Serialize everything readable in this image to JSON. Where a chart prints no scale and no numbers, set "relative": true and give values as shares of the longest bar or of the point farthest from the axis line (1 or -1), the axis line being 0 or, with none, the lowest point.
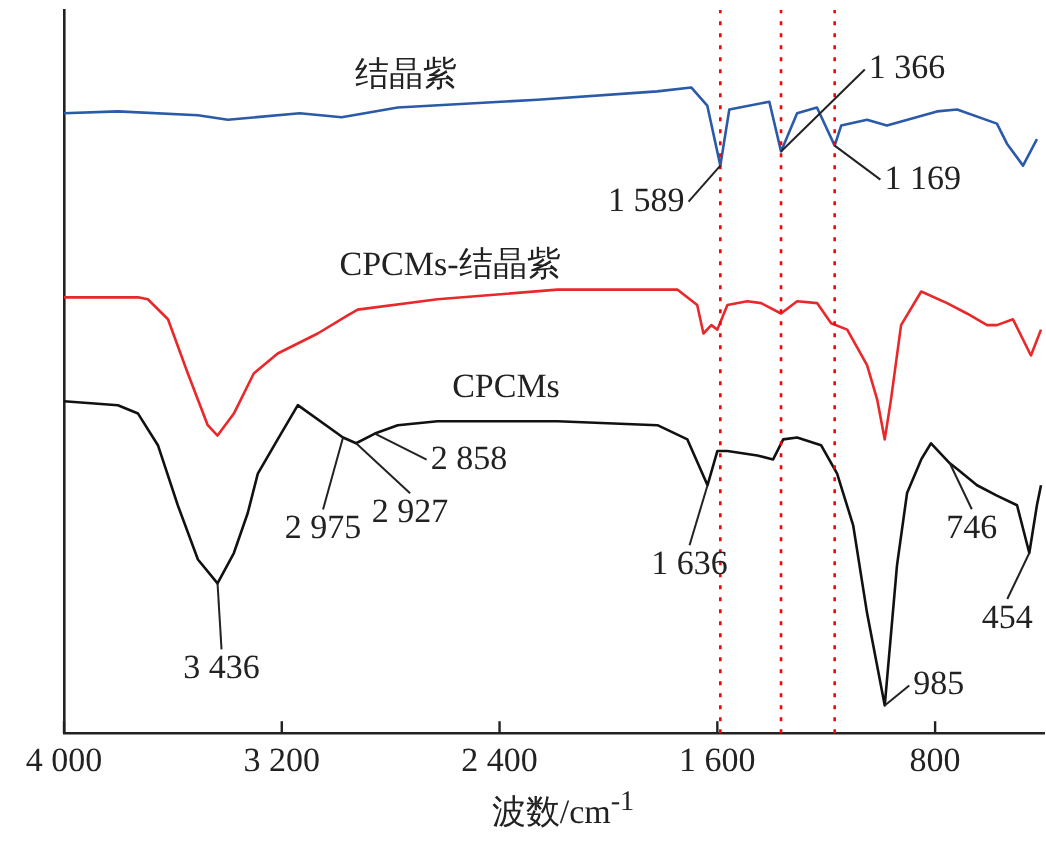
{
  "chart_data": {
    "type": "line",
    "xlabel": "波数/cm$^{-1}$",
    "relative": true,
    "legend": false,
    "grid": false,
    "line_style": "solid",
    "xlim": [
      4000,
      400
    ],
    "xticks": [
      {
        "value": 4000,
        "label": "4 000"
      },
      {
        "value": 3200,
        "label": "3 200"
      },
      {
        "value": 2400,
        "label": "2 400"
      },
      {
        "value": 1600,
        "label": "1 600"
      },
      {
        "value": 800,
        "label": "800"
      }
    ],
    "series": [
      {
        "name": "结晶紫",
        "color": "#2a5aa8",
        "x": [
          4000,
          3802,
          3508,
          3398,
          3134,
          2980,
          2774,
          2261,
          1821,
          1696,
          1637,
          1589,
          1556,
          1409,
          1366,
          1307,
          1234,
          1169,
          1145,
          1050,
          977,
          793,
          719,
          573,
          536,
          477,
          426
        ],
        "values": [
          0.96,
          0.963,
          0.957,
          0.95,
          0.96,
          0.954,
          0.969,
          0.981,
          0.994,
          1.0,
          0.972,
          0.879,
          0.966,
          0.978,
          0.901,
          0.96,
          0.969,
          0.91,
          0.941,
          0.95,
          0.941,
          0.963,
          0.966,
          0.944,
          0.913,
          0.879,
          0.92
        ]
      },
      {
        "name": "CPCMs-结晶紫",
        "color": "#e8282a",
        "x": [
          4000,
          3728,
          3692,
          3618,
          3545,
          3472,
          3436,
          3376,
          3303,
          3215,
          3068,
          2958,
          2921,
          2628,
          2187,
          1747,
          1674,
          1651,
          1622,
          1600,
          1563,
          1490,
          1439,
          1366,
          1307,
          1233,
          1182,
          1123,
          1050,
          1013,
          985,
          962,
          925,
          851,
          756,
          683,
          609,
          573,
          514,
          448,
          411
        ],
        "values": [
          0.675,
          0.675,
          0.672,
          0.641,
          0.557,
          0.477,
          0.461,
          0.495,
          0.557,
          0.588,
          0.619,
          0.647,
          0.656,
          0.672,
          0.687,
          0.687,
          0.663,
          0.619,
          0.632,
          0.625,
          0.663,
          0.669,
          0.666,
          0.65,
          0.669,
          0.666,
          0.635,
          0.625,
          0.57,
          0.517,
          0.455,
          0.517,
          0.632,
          0.684,
          0.666,
          0.65,
          0.632,
          0.632,
          0.641,
          0.585,
          0.625
        ]
      },
      {
        "name": "CPCMs",
        "color": "#111111",
        "x": [
          4000,
          3802,
          3728,
          3655,
          3582,
          3508,
          3436,
          3376,
          3325,
          3288,
          3215,
          3141,
          2975,
          2927,
          2858,
          2774,
          2628,
          2187,
          1820,
          1710,
          1636,
          1600,
          1563,
          1453,
          1395,
          1358,
          1307,
          1219,
          1160,
          1101,
          1050,
          985,
          940,
          903,
          851,
          815,
          746,
          719,
          646,
          573,
          499,
          454,
          426,
          411
        ],
        "values": [
          0.514,
          0.508,
          0.495,
          0.446,
          0.353,
          0.269,
          0.232,
          0.279,
          0.341,
          0.402,
          0.455,
          0.508,
          0.458,
          0.449,
          0.464,
          0.477,
          0.483,
          0.483,
          0.477,
          0.455,
          0.384,
          0.437,
          0.437,
          0.43,
          0.424,
          0.455,
          0.458,
          0.446,
          0.402,
          0.322,
          0.186,
          0.043,
          0.26,
          0.372,
          0.424,
          0.449,
          0.418,
          0.409,
          0.384,
          0.368,
          0.353,
          0.279,
          0.353,
          0.384
        ]
      }
    ],
    "ref_lines": [
      {
        "axis": "x",
        "value": 1589,
        "color": "#ff0000",
        "line_style": "dotted"
      },
      {
        "axis": "x",
        "value": 1366,
        "color": "#ff0000",
        "line_style": "dotted"
      },
      {
        "axis": "x",
        "value": 1169,
        "color": "#ff0000",
        "line_style": "dotted"
      }
    ],
    "annotations": [
      {
        "text": "1 589",
        "x": 1589,
        "y": 0.879
      },
      {
        "text": "1 366",
        "x": 1366,
        "y": 0.901
      },
      {
        "text": "1 169",
        "x": 1169,
        "y": 0.91
      },
      {
        "text": "3 436",
        "x": 3436,
        "y": 0.232
      },
      {
        "text": "2 975",
        "x": 2975,
        "y": 0.458
      },
      {
        "text": "2 927",
        "x": 2927,
        "y": 0.449
      },
      {
        "text": "2 858",
        "x": 2858,
        "y": 0.464
      },
      {
        "text": "1 636",
        "x": 1636,
        "y": 0.384
      },
      {
        "text": "985",
        "x": 985,
        "y": 0.043
      },
      {
        "text": "746",
        "x": 746,
        "y": 0.418
      },
      {
        "text": "454",
        "x": 454,
        "y": 0.279
      }
    ]
  }
}
